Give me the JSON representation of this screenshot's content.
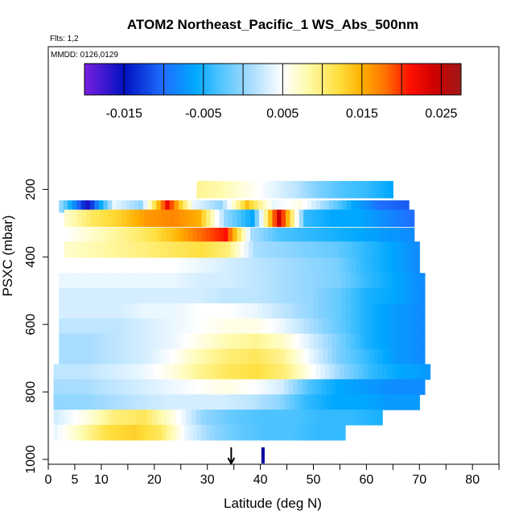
{
  "chart_data": {
    "type": "heatmap",
    "title": "ATOM2 Northeast_Pacific_1 WS_Abs_500nm",
    "flights_label": "Flts: 1,2",
    "dates_label": "MMDD: 0126,0129",
    "xlabel": "Latitude (deg N)",
    "ylabel": "PSXC (mbar)",
    "xlim": [
      0,
      85
    ],
    "ylim": [
      1000,
      100
    ],
    "x_ticks": [
      0,
      5,
      10,
      20,
      30,
      40,
      50,
      60,
      70,
      80
    ],
    "x_tick_labels": [
      "0",
      "5",
      "10",
      "20",
      "30",
      "40",
      "50",
      "60",
      "70",
      "80"
    ],
    "x_minor_ticks": [
      15,
      25,
      35,
      45,
      55,
      65,
      75,
      85
    ],
    "y_ticks": [
      200,
      400,
      600,
      800,
      1000
    ],
    "y_tick_labels": [
      "200",
      "400",
      "600",
      "800",
      "1000"
    ],
    "colorbar": {
      "range": [
        -0.02,
        0.0275
      ],
      "ticks": [
        -0.015,
        -0.005,
        0.005,
        0.015,
        0.025
      ],
      "tick_labels": [
        "-0.015",
        "-0.005",
        "0.005",
        "0.015",
        "0.025"
      ],
      "boundaries": [
        -0.02,
        -0.015,
        -0.01,
        -0.005,
        0.0,
        0.005,
        0.01,
        0.015,
        0.02,
        0.025,
        0.0275
      ],
      "colors": [
        "#7a1fe0",
        "#0010c0",
        "#1e6fff",
        "#00a8ff",
        "#4dc3ff",
        "#a8ddff",
        "#ffffff",
        "#fffbb0",
        "#ffe040",
        "#ffb000",
        "#ff7000",
        "#ff1000",
        "#d00000",
        "#a01818"
      ],
      "color_stops": [
        -0.02,
        -0.015,
        -0.01,
        -0.006,
        -0.003,
        0.001,
        0.005,
        0.008,
        0.012,
        0.015,
        0.018,
        0.021,
        0.024,
        0.0275
      ]
    },
    "layers": [
      {
        "p": 200,
        "lat": [
          28,
          65
        ],
        "values": [
          0.009,
          0.008,
          0.006,
          0.004,
          0.002,
          -0.001,
          -0.003,
          -0.004,
          -0.006
        ]
      },
      {
        "p": 250,
        "lat": [
          2,
          68
        ],
        "values": [
          0.0,
          -0.016,
          0.004,
          0.0,
          0.022,
          0.004,
          0.0,
          0.014,
          0.004,
          0.006,
          0.0,
          -0.006,
          -0.01,
          -0.011
        ]
      },
      {
        "p": 285,
        "lat": [
          3,
          69
        ],
        "values": [
          0.007,
          0.011,
          0.013,
          0.016,
          0.017,
          0.015,
          0.0,
          -0.006,
          0.024,
          -0.004,
          -0.006,
          -0.006,
          -0.008,
          -0.01
        ]
      },
      {
        "p": 335,
        "lat": [
          3,
          69
        ],
        "values": [
          0.005,
          0.007,
          0.009,
          0.011,
          0.014,
          0.018,
          0.021,
          0.001,
          -0.003,
          -0.004,
          -0.005,
          -0.006,
          -0.007,
          -0.008
        ]
      },
      {
        "p": 378,
        "lat": [
          3,
          70
        ],
        "values": [
          0.007,
          0.008,
          0.009,
          0.01,
          0.011,
          0.012,
          0.01,
          0.001,
          0.0,
          -0.001,
          -0.002,
          -0.004,
          -0.006,
          -0.008
        ]
      },
      {
        "p": 425,
        "lat": [
          3,
          70
        ],
        "values": [
          0.005,
          0.005,
          0.005,
          0.005,
          0.005,
          0.004,
          0.003,
          0.002,
          0.001,
          0.0,
          -0.001,
          -0.004,
          -0.006,
          -0.008
        ]
      },
      {
        "p": 470,
        "lat": [
          2,
          71
        ],
        "values": [
          0.004,
          0.004,
          0.004,
          0.004,
          0.004,
          0.003,
          0.003,
          0.002,
          0.001,
          0.0,
          -0.001,
          -0.004,
          -0.006,
          -0.008
        ]
      },
      {
        "p": 515,
        "lat": [
          2,
          71
        ],
        "values": [
          0.003,
          0.003,
          0.003,
          0.003,
          0.003,
          0.003,
          0.002,
          0.002,
          0.001,
          0.0,
          -0.002,
          -0.005,
          -0.006,
          -0.008
        ]
      },
      {
        "p": 560,
        "lat": [
          2,
          71
        ],
        "values": [
          0.003,
          0.003,
          0.003,
          0.004,
          0.004,
          0.005,
          0.005,
          0.004,
          0.002,
          0.0,
          -0.002,
          -0.005,
          -0.007,
          -0.008
        ]
      },
      {
        "p": 605,
        "lat": [
          2,
          71
        ],
        "values": [
          0.002,
          0.002,
          0.002,
          0.003,
          0.004,
          0.005,
          0.006,
          0.006,
          0.004,
          0.001,
          -0.002,
          -0.005,
          -0.007,
          -0.008
        ]
      },
      {
        "p": 650,
        "lat": [
          2,
          71
        ],
        "values": [
          0.001,
          0.001,
          0.002,
          0.003,
          0.004,
          0.006,
          0.008,
          0.009,
          0.007,
          0.003,
          -0.001,
          -0.005,
          -0.007,
          -0.008
        ]
      },
      {
        "p": 695,
        "lat": [
          2,
          71
        ],
        "values": [
          0.001,
          0.001,
          0.002,
          0.003,
          0.005,
          0.008,
          0.01,
          0.011,
          0.009,
          0.004,
          -0.001,
          -0.004,
          -0.007,
          -0.008
        ]
      },
      {
        "p": 740,
        "lat": [
          1,
          72
        ],
        "values": [
          0.002,
          0.002,
          0.003,
          0.004,
          0.006,
          0.009,
          0.011,
          0.012,
          0.01,
          0.005,
          0.0,
          -0.004,
          -0.006,
          -0.007
        ]
      },
      {
        "p": 785,
        "lat": [
          1,
          71
        ],
        "values": [
          0.001,
          0.001,
          0.002,
          0.003,
          0.004,
          0.005,
          0.006,
          0.005,
          0.003,
          -0.003,
          -0.006,
          -0.007,
          -0.008,
          -0.008
        ]
      },
      {
        "p": 830,
        "lat": [
          1,
          70
        ],
        "values": [
          0.0,
          0.0,
          0.001,
          0.002,
          0.003,
          0.003,
          0.003,
          0.002,
          0.0,
          -0.004,
          -0.006,
          -0.006,
          -0.007,
          -0.007
        ]
      },
      {
        "p": 875,
        "lat": [
          1,
          63
        ],
        "values": [
          0.003,
          0.006,
          0.01,
          0.011,
          0.006,
          0.0,
          -0.002,
          -0.003,
          -0.003,
          -0.004,
          -0.004,
          -0.005
        ]
      },
      {
        "p": 920,
        "lat": [
          1,
          56
        ],
        "values": [
          0.004,
          0.008,
          0.012,
          0.013,
          0.011,
          0.004,
          0.0,
          -0.002,
          -0.003,
          -0.003,
          -0.004,
          -0.004
        ]
      }
    ],
    "markers": [
      {
        "type": "arrow",
        "lat": 34.5
      },
      {
        "type": "bar",
        "lat": 40.5
      }
    ]
  }
}
